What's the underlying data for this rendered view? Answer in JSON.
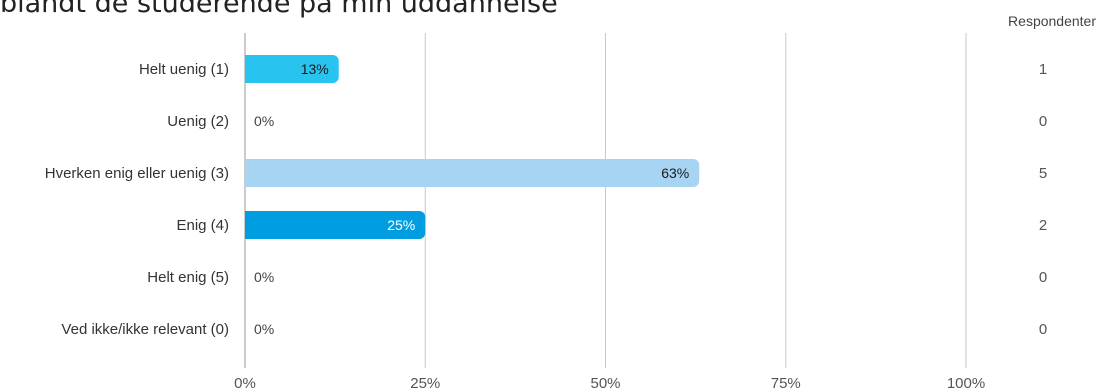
{
  "title": "blandt de studerende på min uddannelse",
  "responses_header": "Respondenter",
  "chart_data": {
    "type": "bar",
    "orientation": "horizontal",
    "title": "blandt de studerende på min uddannelse",
    "categories": [
      "Helt uenig (1)",
      "Uenig (2)",
      "Hverken enig eller uenig (3)",
      "Enig (4)",
      "Helt enig (5)",
      "Ved ikke/ikke relevant (0)"
    ],
    "values": [
      13,
      0,
      63,
      25,
      0,
      0
    ],
    "value_labels": [
      "13%",
      "0%",
      "63%",
      "25%",
      "0%",
      "0%"
    ],
    "respondents": [
      1,
      0,
      5,
      2,
      0,
      0
    ],
    "bar_colors": [
      "#29c3f0",
      "#29c3f0",
      "#a8d4f4",
      "#009ee0",
      "#29c3f0",
      "#29c3f0"
    ],
    "label_colors": [
      "#1a1a1a",
      "#444444",
      "#1a1a1a",
      "#ffffff",
      "#444444",
      "#444444"
    ],
    "xlim": [
      0,
      100
    ],
    "xticks": [
      "0%",
      "25%",
      "50%",
      "75%",
      "100%"
    ],
    "grid": true,
    "legend": "none"
  }
}
